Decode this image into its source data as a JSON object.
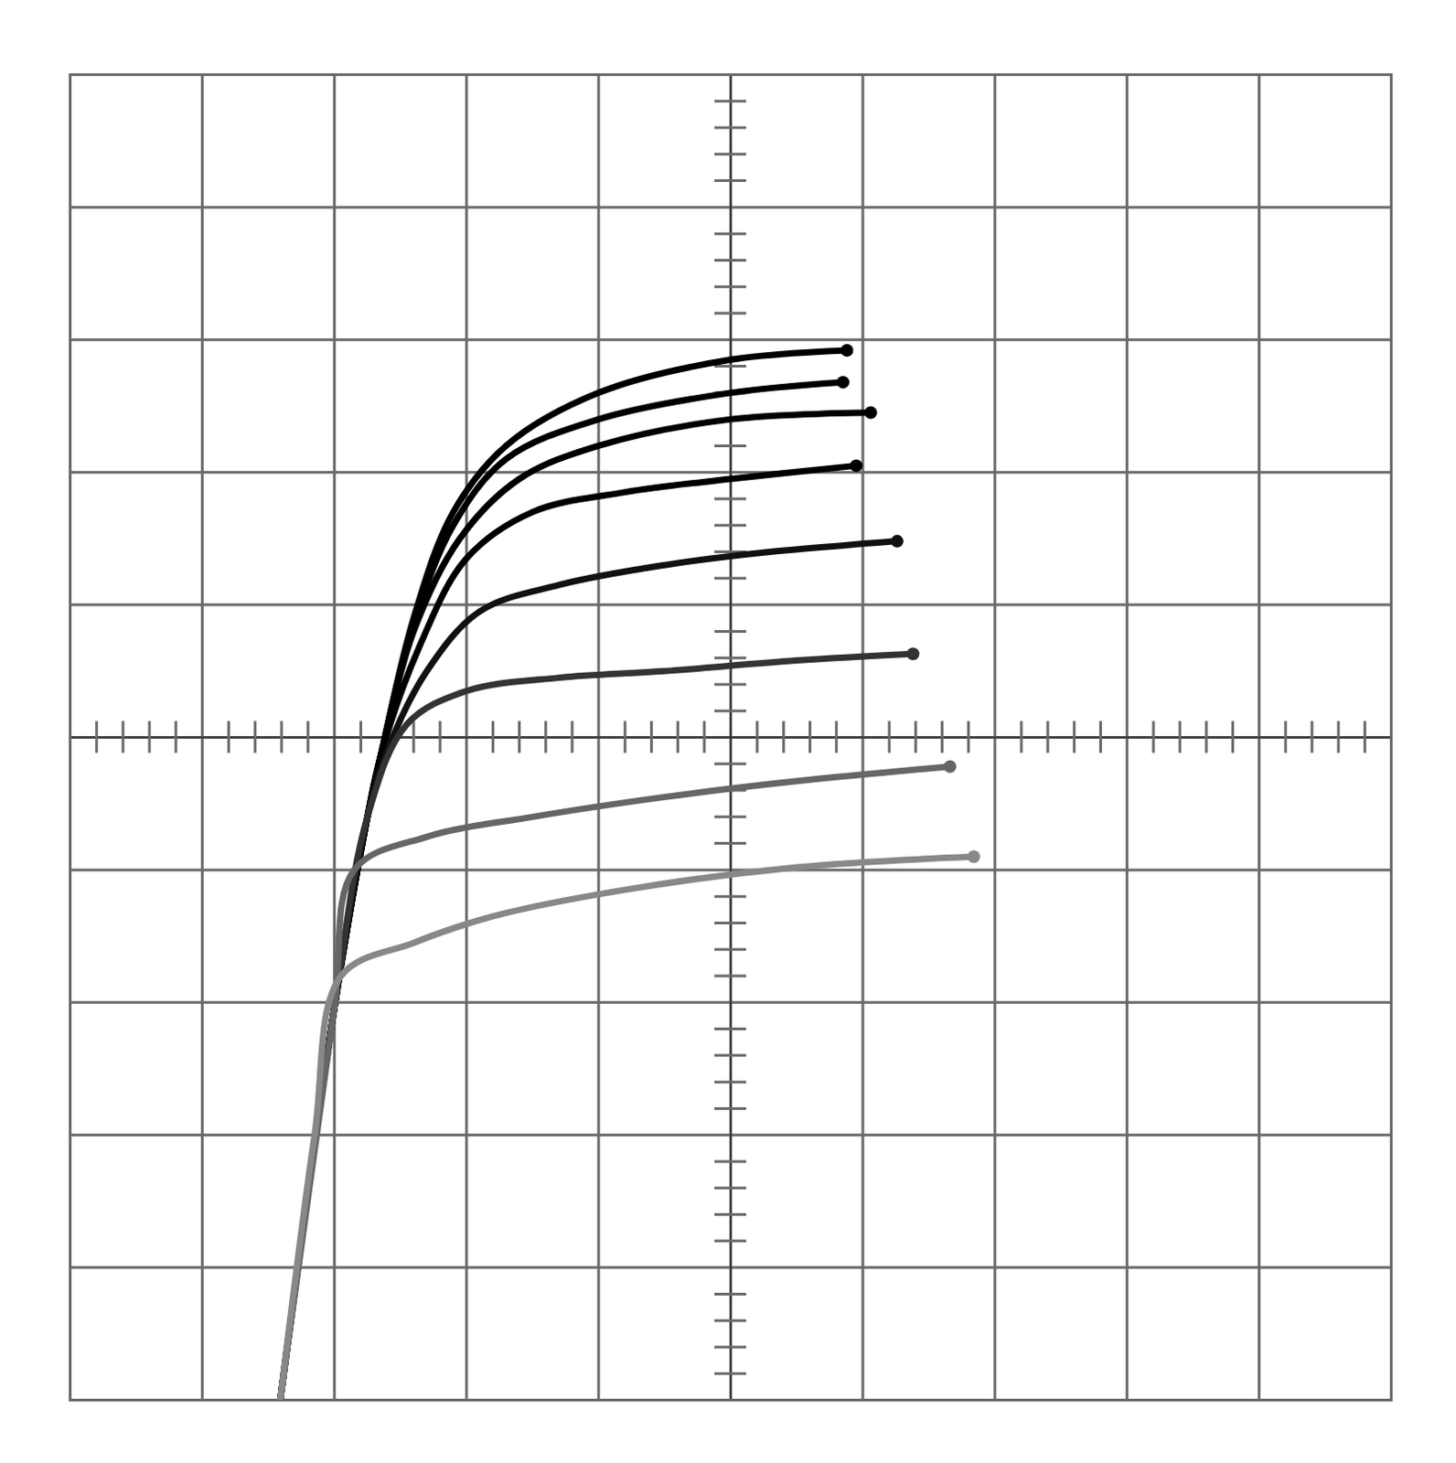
{
  "chart_data": {
    "type": "line",
    "xlim": [
      -5,
      5
    ],
    "ylim": [
      -5,
      5
    ],
    "xticks": [
      -5,
      -4,
      -3,
      -2,
      -1,
      0,
      1,
      2,
      3,
      4,
      5
    ],
    "yticks": [
      -5,
      -4,
      -3,
      -2,
      -1,
      0,
      1,
      2,
      3,
      4,
      5
    ],
    "grid": true,
    "tick_labels": false,
    "series": [
      {
        "color": "#000000",
        "x": [
          -3.41,
          -3.0,
          -2.75,
          -2.65,
          -2.4,
          -2.1,
          -1.7,
          -1.0,
          0.0,
          0.88
        ],
        "values": [
          -5.0,
          -2.04,
          -0.6,
          -0.14,
          0.9,
          1.7,
          2.2,
          2.6,
          2.85,
          2.92
        ]
      },
      {
        "color": "#000000",
        "x": [
          -3.41,
          -3.0,
          -2.75,
          -2.65,
          -2.4,
          -2.1,
          -1.7,
          -1.0,
          0.0,
          0.85
        ],
        "values": [
          -5.0,
          -2.04,
          -0.6,
          -0.14,
          0.85,
          1.6,
          2.1,
          2.4,
          2.6,
          2.68
        ]
      },
      {
        "color": "#000000",
        "x": [
          -3.41,
          -3.0,
          -2.75,
          -2.65,
          -2.4,
          -2.05,
          -1.6,
          -1.0,
          0.0,
          1.06
        ],
        "values": [
          -5.0,
          -2.04,
          -0.6,
          -0.14,
          0.8,
          1.5,
          1.95,
          2.2,
          2.4,
          2.45
        ]
      },
      {
        "color": "#000000",
        "x": [
          -3.41,
          -3.0,
          -2.75,
          -2.65,
          -2.35,
          -2.0,
          -1.5,
          -0.8,
          0.0,
          0.95
        ],
        "values": [
          -5.0,
          -2.04,
          -0.6,
          -0.14,
          0.7,
          1.35,
          1.7,
          1.85,
          1.95,
          2.05
        ]
      },
      {
        "color": "#111111",
        "x": [
          -3.41,
          -3.0,
          -2.75,
          -2.6,
          -2.3,
          -1.9,
          -1.3,
          -0.5,
          0.3,
          1.26
        ],
        "values": [
          -5.0,
          -2.04,
          -0.6,
          -0.1,
          0.5,
          0.95,
          1.15,
          1.3,
          1.4,
          1.48
        ]
      },
      {
        "color": "#333333",
        "x": [
          -3.41,
          -3.0,
          -2.75,
          -2.45,
          -2.0,
          -1.3,
          -0.5,
          0.5,
          1.38
        ],
        "values": [
          -5.0,
          -2.04,
          -0.6,
          0.1,
          0.35,
          0.45,
          0.5,
          0.58,
          0.63
        ]
      },
      {
        "color": "#666666",
        "x": [
          -3.41,
          -3.0,
          -2.85,
          -2.3,
          -1.5,
          -0.5,
          0.5,
          1.66
        ],
        "values": [
          -5.0,
          -2.04,
          -1.0,
          -0.75,
          -0.6,
          -0.45,
          -0.33,
          -0.22
        ]
      },
      {
        "color": "#888888",
        "x": [
          -3.41,
          -3.15,
          -2.95,
          -2.4,
          -1.8,
          -0.8,
          0.5,
          1.84
        ],
        "values": [
          -5.0,
          -3.0,
          -1.8,
          -1.55,
          -1.35,
          -1.15,
          -0.98,
          -0.9
        ]
      }
    ]
  }
}
